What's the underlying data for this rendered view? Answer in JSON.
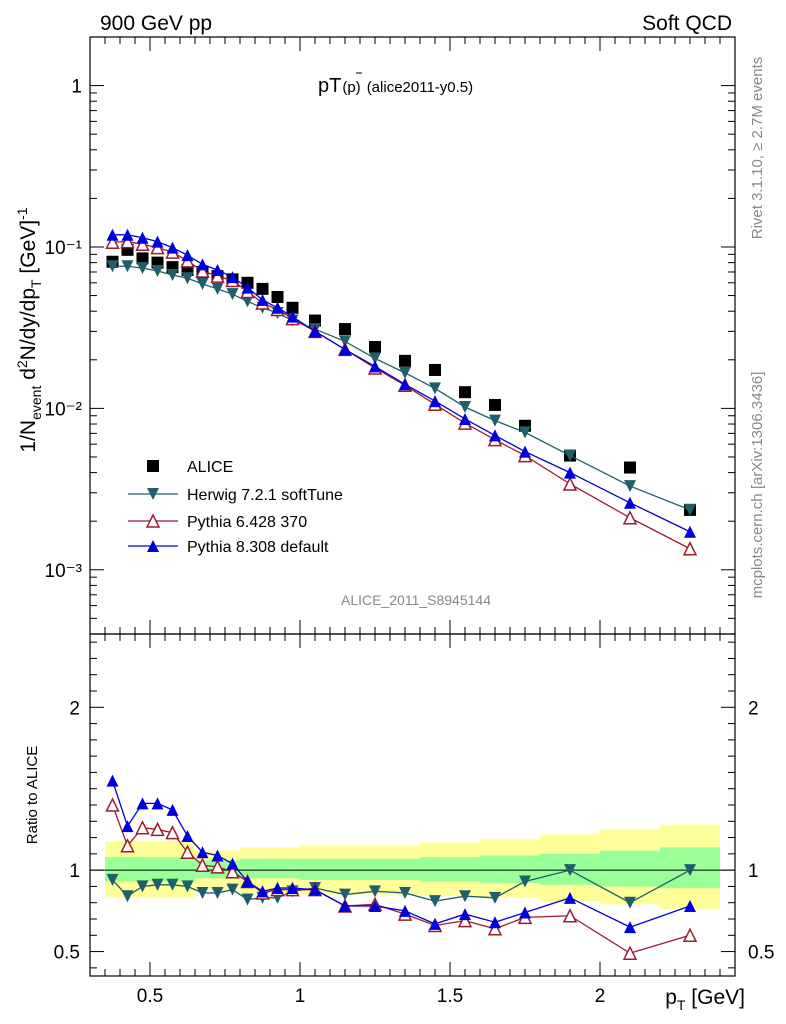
{
  "header": {
    "left": "900 GeV pp",
    "right": "Soft QCD"
  },
  "side_text": {
    "rivet": "Rivet 3.1.10, ≥ 2.7M events",
    "mcplots": "mcplots.cern.ch [arXiv:1306.3436]"
  },
  "plot_title": {
    "main": "pT",
    "pbar": "(p)",
    "tag": "(alice2011-y0.5)"
  },
  "analysis_label": "ALICE_2011_S8945144",
  "colors": {
    "alice": "#000000",
    "herwig": "#1f5f6a",
    "pythia6": "#9a1d2e",
    "pythia8": "#0000dd",
    "band_inner": "#99ff99",
    "band_outer": "#ffff99"
  },
  "chart_data": [
    {
      "type": "line",
      "title": "pT(p̄) (alice2011-y0.5)",
      "ylabel": "1/N_event d²N/dy/dp_T [GeV]⁻¹",
      "xlim": [
        0.3,
        2.45
      ],
      "ylim": [
        0.0004,
        2.0
      ],
      "log_y": true,
      "yticks": [
        "10⁻³",
        "10⁻²",
        "10⁻¹",
        "1"
      ],
      "legend": {
        "placement": "lower-left"
      },
      "x": [
        0.375,
        0.425,
        0.475,
        0.525,
        0.575,
        0.625,
        0.675,
        0.725,
        0.775,
        0.825,
        0.875,
        0.925,
        0.975,
        1.05,
        1.15,
        1.25,
        1.35,
        1.45,
        1.55,
        1.65,
        1.75,
        1.9,
        2.1,
        2.3
      ],
      "series": [
        {
          "name": "ALICE",
          "marker": "square",
          "values": [
            0.081,
            0.096,
            0.085,
            0.08,
            0.075,
            0.072,
            0.07,
            0.066,
            0.063,
            0.06,
            0.055,
            0.049,
            0.042,
            0.035,
            0.031,
            0.024,
            0.0197,
            0.0173,
            0.0126,
            0.0105,
            0.0078,
            0.0051,
            0.0043,
            0.00235
          ]
        },
        {
          "name": "Herwig 7.2.1 softTune",
          "marker": "triangle-down",
          "values": [
            0.076,
            0.076,
            0.074,
            0.071,
            0.067,
            0.064,
            0.059,
            0.055,
            0.051,
            0.046,
            0.042,
            0.039,
            0.035,
            0.031,
            0.026,
            0.0204,
            0.0166,
            0.0133,
            0.0102,
            0.0084,
            0.0071,
            0.0051,
            0.0033,
            0.00235
          ]
        },
        {
          "name": "Pythia 6.428 370",
          "marker": "triangle-up-open",
          "values": [
            0.107,
            0.108,
            0.104,
            0.099,
            0.093,
            0.082,
            0.071,
            0.066,
            0.062,
            0.053,
            0.045,
            0.041,
            0.036,
            0.03,
            0.0232,
            0.0178,
            0.0139,
            0.0106,
            0.0081,
            0.0064,
            0.0051,
            0.0034,
            0.0021,
            0.00135
          ]
        },
        {
          "name": "Pythia 8.308 default",
          "marker": "triangle-up",
          "values": [
            0.119,
            0.119,
            0.114,
            0.108,
            0.099,
            0.089,
            0.078,
            0.072,
            0.065,
            0.056,
            0.047,
            0.042,
            0.037,
            0.03,
            0.0232,
            0.0182,
            0.0141,
            0.0111,
            0.0086,
            0.0068,
            0.0054,
            0.004,
            0.0026,
            0.00172
          ]
        }
      ]
    },
    {
      "type": "line",
      "ylabel": "Ratio to ALICE",
      "xlabel": "p_T [GeV]",
      "xlim": [
        0.3,
        2.45
      ],
      "ylim": [
        0.35,
        2.45
      ],
      "xticks": [
        "0.5",
        "1",
        "1.5",
        "2"
      ],
      "yticks": [
        "0.5",
        "1",
        "2"
      ],
      "x": [
        0.375,
        0.425,
        0.475,
        0.525,
        0.575,
        0.625,
        0.675,
        0.725,
        0.775,
        0.825,
        0.875,
        0.925,
        0.975,
        1.05,
        1.15,
        1.25,
        1.35,
        1.45,
        1.55,
        1.65,
        1.75,
        1.9,
        2.1,
        2.3
      ],
      "band": {
        "edges": [
          0.35,
          0.65,
          0.7,
          0.8,
          1.0,
          1.4,
          1.6,
          1.8,
          2.0,
          2.2,
          2.4
        ],
        "inner": [
          [
            0.93,
            1.08
          ],
          [
            0.95,
            1.06
          ],
          [
            0.95,
            1.06
          ],
          [
            0.95,
            1.07
          ],
          [
            0.94,
            1.07
          ],
          [
            0.93,
            1.08
          ],
          [
            0.92,
            1.09
          ],
          [
            0.91,
            1.1
          ],
          [
            0.9,
            1.12
          ],
          [
            0.89,
            1.14
          ]
        ],
        "outer": [
          [
            0.83,
            1.18
          ],
          [
            0.88,
            1.12
          ],
          [
            0.88,
            1.12
          ],
          [
            0.86,
            1.14
          ],
          [
            0.85,
            1.15
          ],
          [
            0.84,
            1.17
          ],
          [
            0.83,
            1.19
          ],
          [
            0.81,
            1.22
          ],
          [
            0.79,
            1.25
          ],
          [
            0.76,
            1.28
          ]
        ]
      },
      "series": [
        {
          "name": "Herwig 7.2.1 softTune",
          "values": [
            0.94,
            0.84,
            0.9,
            0.91,
            0.91,
            0.9,
            0.86,
            0.86,
            0.88,
            0.82,
            0.83,
            0.83,
            0.87,
            0.89,
            0.85,
            0.87,
            0.86,
            0.81,
            0.84,
            0.83,
            0.93,
            1.0,
            0.8,
            1.0
          ]
        },
        {
          "name": "Pythia 6.428 370",
          "values": [
            1.4,
            1.15,
            1.26,
            1.25,
            1.23,
            1.11,
            1.03,
            1.02,
            0.99,
            0.93,
            0.86,
            0.88,
            0.88,
            0.88,
            0.78,
            0.79,
            0.73,
            0.66,
            0.69,
            0.64,
            0.71,
            0.72,
            0.49,
            0.6
          ]
        },
        {
          "name": "Pythia 8.308 default",
          "values": [
            1.55,
            1.27,
            1.41,
            1.41,
            1.37,
            1.21,
            1.11,
            1.09,
            1.04,
            0.93,
            0.87,
            0.89,
            0.89,
            0.88,
            0.78,
            0.78,
            0.75,
            0.67,
            0.73,
            0.68,
            0.74,
            0.83,
            0.65,
            0.78
          ]
        }
      ]
    }
  ]
}
